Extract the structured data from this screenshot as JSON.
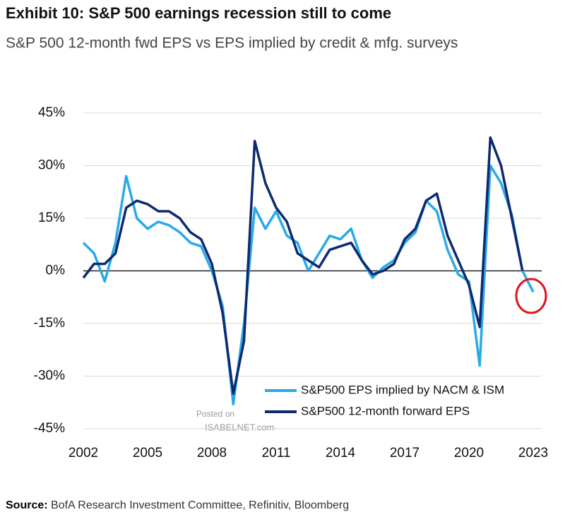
{
  "chart_data": {
    "type": "line",
    "title": "Exhibit 10: S&P 500 earnings recession still to come",
    "subtitle": "S&P 500 12-month fwd EPS vs EPS implied by credit & mfg. surveys",
    "x": [
      2002.0,
      2002.5,
      2003.0,
      2003.5,
      2004.0,
      2004.5,
      2005.0,
      2005.5,
      2006.0,
      2006.5,
      2007.0,
      2007.5,
      2008.0,
      2008.5,
      2009.0,
      2009.5,
      2010.0,
      2010.5,
      2011.0,
      2011.5,
      2012.0,
      2012.5,
      2013.0,
      2013.5,
      2014.0,
      2014.5,
      2015.0,
      2015.5,
      2016.0,
      2016.5,
      2017.0,
      2017.5,
      2018.0,
      2018.5,
      2019.0,
      2019.5,
      2020.0,
      2020.5,
      2021.0,
      2021.5,
      2022.0,
      2022.5,
      2023.0
    ],
    "series": [
      {
        "name": "S&P500 EPS implied by NACM & ISM",
        "color": "#2aa9e8",
        "values": [
          8,
          5,
          -3,
          8,
          27,
          15,
          12,
          14,
          13,
          11,
          8,
          7,
          0,
          -10,
          -38,
          -15,
          18,
          12,
          17,
          10,
          8,
          0,
          5,
          10,
          9,
          12,
          3,
          -2,
          1,
          3,
          8,
          11,
          20,
          17,
          6,
          -1,
          -3,
          -27,
          30,
          25,
          16,
          0,
          -6
        ]
      },
      {
        "name": "S&P500 12-month forward EPS",
        "color": "#0d2a6e",
        "values": [
          -2,
          2,
          2,
          5,
          18,
          20,
          19,
          17,
          17,
          15,
          11,
          9,
          2,
          -12,
          -35,
          -20,
          37,
          25,
          18,
          14,
          5,
          3,
          1,
          6,
          7,
          8,
          3,
          -1,
          0,
          2,
          9,
          12,
          20,
          22,
          10,
          3,
          -4,
          -16,
          38,
          30,
          15,
          0,
          null
        ]
      }
    ],
    "xlim": [
      2002,
      2023
    ],
    "xticks": [
      2002,
      2005,
      2008,
      2011,
      2014,
      2017,
      2020,
      2023
    ],
    "ylim": [
      -45,
      45
    ],
    "yticks": [
      {
        "value": -45,
        "label": "-45%"
      },
      {
        "value": -30,
        "label": "-30%"
      },
      {
        "value": -15,
        "label": "-15%"
      },
      {
        "value": 0,
        "label": "0%"
      },
      {
        "value": 15,
        "label": "15%"
      },
      {
        "value": 30,
        "label": "30%"
      },
      {
        "value": 45,
        "label": "45%"
      }
    ],
    "grid": true,
    "legend": "lower right",
    "watermark": [
      "Posted on",
      "ISABELNET.com"
    ],
    "source_label": "Source:",
    "source": "BofA Research Investment Committee, Refinitiv, Bloomberg"
  }
}
